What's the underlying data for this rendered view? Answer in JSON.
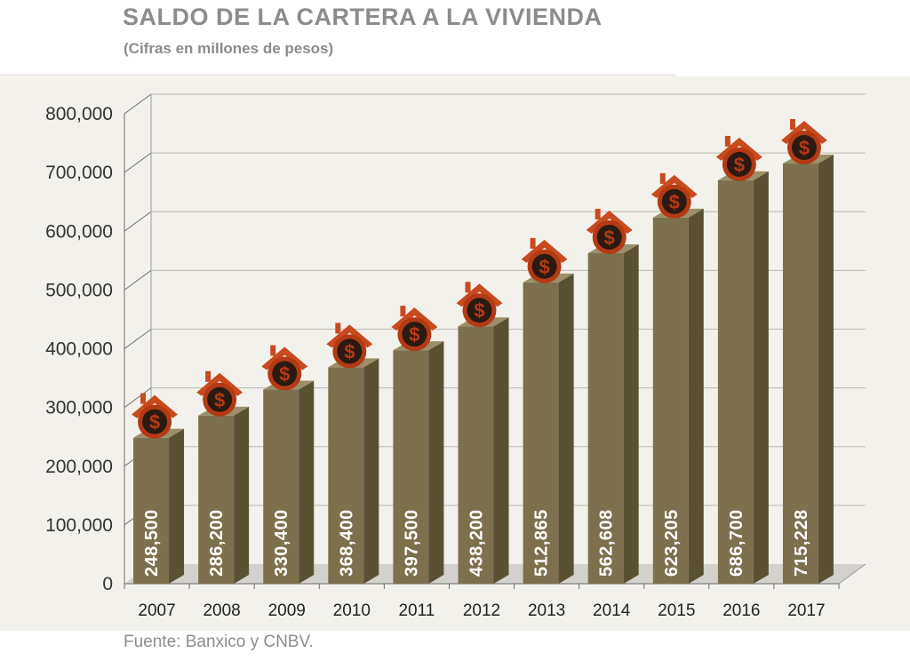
{
  "title": "SALDO DE LA CARTERA A LA VIVIENDA",
  "subtitle": "(Cifras en millones de pesos)",
  "source": "Fuente: Banxico y CNBV.",
  "colors": {
    "bar_front": "#7c704d",
    "bar_side": "#5a5135",
    "bar_top": "#9b8f69",
    "icon_roof": "#c84a1f",
    "icon_coin": "#b33a14",
    "icon_coin_inner": "#2a1a12",
    "panel_bg": "#f3f1eb"
  },
  "icon_name": "house-dollar-icon",
  "chart_data": {
    "type": "bar",
    "categories": [
      "2007",
      "2008",
      "2009",
      "2010",
      "2011",
      "2012",
      "2013",
      "2014",
      "2015",
      "2016",
      "2017"
    ],
    "values": [
      248500,
      286200,
      330400,
      368400,
      397500,
      438200,
      512865,
      562608,
      623205,
      686700,
      715228
    ],
    "data_labels": [
      "248,500",
      "286,200",
      "330,400",
      "368,400",
      "397,500",
      "438,200",
      "512,865",
      "562,608",
      "623,205",
      "686,700",
      "715,228"
    ],
    "y_ticks": [
      "0",
      "100,000",
      "200,000",
      "300,000",
      "400,000",
      "500,000",
      "600,000",
      "700,000",
      "800,000"
    ],
    "ylim": [
      0,
      800000
    ],
    "grid": true,
    "title": "SALDO DE LA CARTERA A LA VIVIENDA",
    "xlabel": "",
    "ylabel": ""
  }
}
